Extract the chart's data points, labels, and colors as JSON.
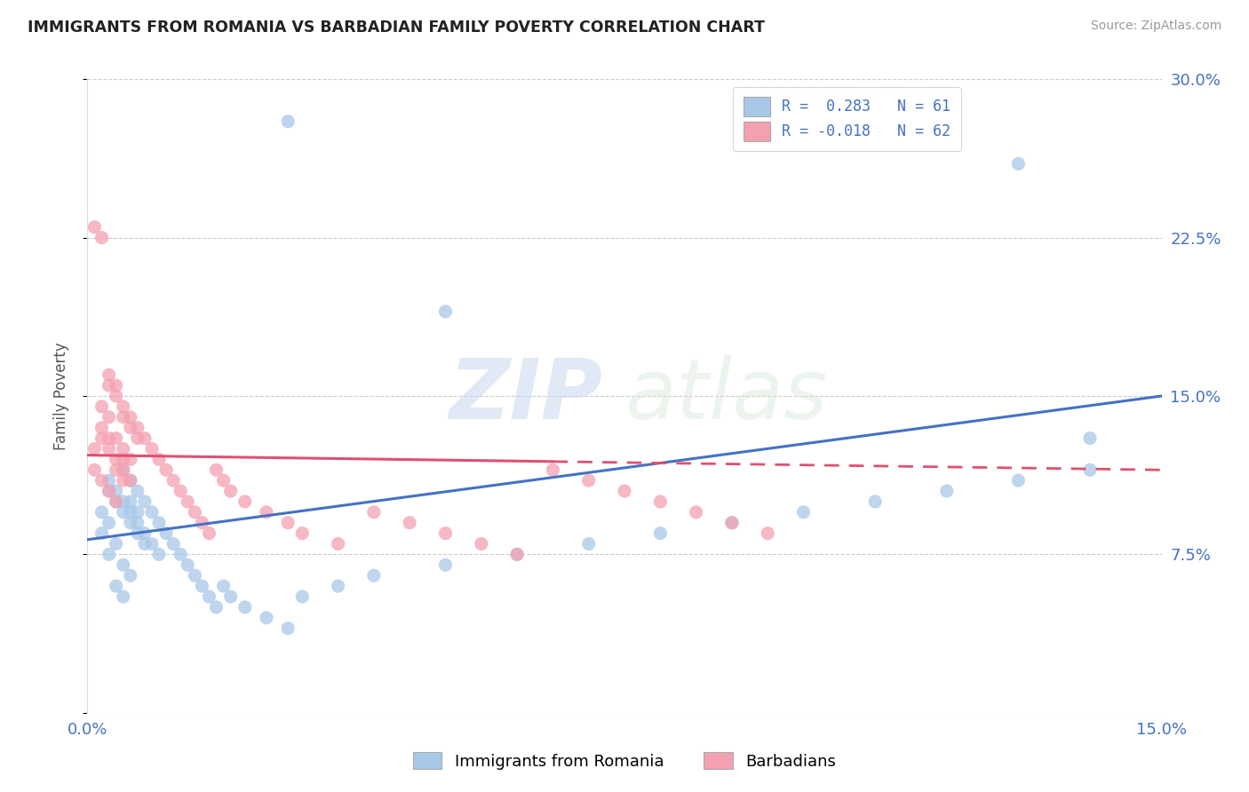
{
  "title": "IMMIGRANTS FROM ROMANIA VS BARBADIAN FAMILY POVERTY CORRELATION CHART",
  "source": "Source: ZipAtlas.com",
  "ylabel_label": "Family Poverty",
  "legend_blue_label": "Immigrants from Romania",
  "legend_pink_label": "Barbadians",
  "R_blue": 0.283,
  "N_blue": 61,
  "R_pink": -0.018,
  "N_pink": 62,
  "xlim": [
    0,
    0.15
  ],
  "ylim": [
    0,
    0.3
  ],
  "yticks": [
    0.0,
    0.075,
    0.15,
    0.225,
    0.3
  ],
  "ytick_labels": [
    "",
    "7.5%",
    "15.0%",
    "22.5%",
    "30.0%"
  ],
  "xticks": [
    0.0,
    0.075,
    0.15
  ],
  "xtick_labels": [
    "0.0%",
    "",
    "15.0%"
  ],
  "color_blue": "#a8c8e8",
  "color_blue_line": "#4472c4",
  "color_pink": "#f4a0b0",
  "color_pink_line": "#e05070",
  "watermark_zip": "ZIP",
  "watermark_atlas": "atlas",
  "blue_line_x0": 0.0,
  "blue_line_y0": 0.082,
  "blue_line_x1": 0.15,
  "blue_line_y1": 0.15,
  "pink_line_x0": 0.0,
  "pink_line_y0": 0.122,
  "pink_line_x1": 0.15,
  "pink_line_y1": 0.115,
  "pink_line_solid_end": 0.065,
  "blue_pts_x": [
    0.002,
    0.003,
    0.004,
    0.005,
    0.006,
    0.002,
    0.003,
    0.004,
    0.005,
    0.006,
    0.007,
    0.003,
    0.004,
    0.005,
    0.006,
    0.007,
    0.008,
    0.003,
    0.004,
    0.005,
    0.006,
    0.007,
    0.008,
    0.009,
    0.01,
    0.005,
    0.006,
    0.007,
    0.008,
    0.009,
    0.01,
    0.011,
    0.012,
    0.013,
    0.014,
    0.015,
    0.016,
    0.017,
    0.018,
    0.019,
    0.02,
    0.022,
    0.025,
    0.028,
    0.03,
    0.035,
    0.04,
    0.05,
    0.06,
    0.07,
    0.08,
    0.09,
    0.1,
    0.11,
    0.12,
    0.13,
    0.14,
    0.028,
    0.05,
    0.13,
    0.14
  ],
  "blue_pts_y": [
    0.085,
    0.075,
    0.08,
    0.07,
    0.065,
    0.095,
    0.09,
    0.06,
    0.055,
    0.1,
    0.095,
    0.105,
    0.1,
    0.095,
    0.09,
    0.085,
    0.08,
    0.11,
    0.105,
    0.1,
    0.095,
    0.09,
    0.085,
    0.08,
    0.075,
    0.115,
    0.11,
    0.105,
    0.1,
    0.095,
    0.09,
    0.085,
    0.08,
    0.075,
    0.07,
    0.065,
    0.06,
    0.055,
    0.05,
    0.06,
    0.055,
    0.05,
    0.045,
    0.04,
    0.055,
    0.06,
    0.065,
    0.07,
    0.075,
    0.08,
    0.085,
    0.09,
    0.095,
    0.1,
    0.105,
    0.11,
    0.115,
    0.28,
    0.19,
    0.26,
    0.13
  ],
  "pink_pts_x": [
    0.001,
    0.002,
    0.003,
    0.004,
    0.005,
    0.001,
    0.002,
    0.003,
    0.004,
    0.005,
    0.002,
    0.003,
    0.004,
    0.005,
    0.006,
    0.002,
    0.003,
    0.004,
    0.005,
    0.006,
    0.003,
    0.004,
    0.005,
    0.006,
    0.007,
    0.003,
    0.004,
    0.005,
    0.006,
    0.007,
    0.008,
    0.009,
    0.01,
    0.011,
    0.012,
    0.013,
    0.014,
    0.015,
    0.016,
    0.017,
    0.018,
    0.019,
    0.02,
    0.022,
    0.025,
    0.028,
    0.03,
    0.035,
    0.04,
    0.045,
    0.05,
    0.055,
    0.06,
    0.065,
    0.07,
    0.075,
    0.08,
    0.085,
    0.09,
    0.095,
    0.001,
    0.002
  ],
  "pink_pts_y": [
    0.115,
    0.11,
    0.105,
    0.1,
    0.12,
    0.125,
    0.13,
    0.125,
    0.115,
    0.11,
    0.135,
    0.13,
    0.12,
    0.115,
    0.11,
    0.145,
    0.14,
    0.13,
    0.125,
    0.12,
    0.155,
    0.15,
    0.14,
    0.135,
    0.13,
    0.16,
    0.155,
    0.145,
    0.14,
    0.135,
    0.13,
    0.125,
    0.12,
    0.115,
    0.11,
    0.105,
    0.1,
    0.095,
    0.09,
    0.085,
    0.115,
    0.11,
    0.105,
    0.1,
    0.095,
    0.09,
    0.085,
    0.08,
    0.095,
    0.09,
    0.085,
    0.08,
    0.075,
    0.115,
    0.11,
    0.105,
    0.1,
    0.095,
    0.09,
    0.085,
    0.23,
    0.225
  ]
}
